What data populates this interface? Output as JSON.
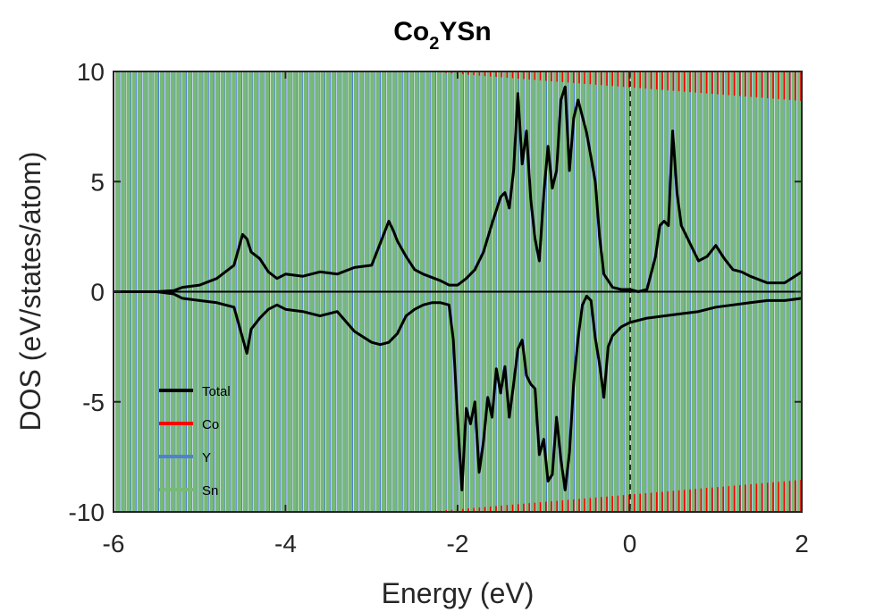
{
  "chart_data": {
    "type": "line",
    "title_main": "Co",
    "title_sub": "2",
    "title_rest": "YSn",
    "xlabel": "Energy (eV)",
    "ylabel": "DOS (eV/states/atom)",
    "xlim": [
      -6,
      2
    ],
    "ylim": [
      -10,
      10
    ],
    "xticks": [
      -6,
      -4,
      -2,
      0,
      2
    ],
    "xtick_labels": [
      "-6",
      "-4",
      "-2",
      "0",
      "2"
    ],
    "yticks": [
      -10,
      -5,
      0,
      5,
      10
    ],
    "ytick_labels": [
      "-10",
      "-5",
      "0",
      "5",
      "10"
    ],
    "fermi_level": 0,
    "legend_position": "lower-left",
    "legend": [
      {
        "name": "Total",
        "color": "#000000"
      },
      {
        "name": "Co",
        "color": "#ff0000"
      },
      {
        "name": "Y",
        "color": "#4f81d0"
      },
      {
        "name": "Sn",
        "color": "#77b977"
      }
    ],
    "series": [
      {
        "name": "Total",
        "color": "#000000",
        "spin_up": {
          "x": [
            -6.0,
            -5.5,
            -5.3,
            -5.2,
            -5.0,
            -4.8,
            -4.6,
            -4.5,
            -4.45,
            -4.4,
            -4.3,
            -4.2,
            -4.1,
            -4.0,
            -3.8,
            -3.6,
            -3.4,
            -3.2,
            -3.0,
            -2.9,
            -2.8,
            -2.75,
            -2.7,
            -2.6,
            -2.5,
            -2.4,
            -2.2,
            -2.1,
            -2.0,
            -1.9,
            -1.8,
            -1.7,
            -1.6,
            -1.5,
            -1.45,
            -1.4,
            -1.35,
            -1.3,
            -1.25,
            -1.2,
            -1.15,
            -1.1,
            -1.05,
            -1.0,
            -0.95,
            -0.9,
            -0.85,
            -0.8,
            -0.75,
            -0.7,
            -0.65,
            -0.6,
            -0.5,
            -0.4,
            -0.35,
            -0.3,
            -0.2,
            -0.1,
            0.0,
            0.1,
            0.2,
            0.3,
            0.35,
            0.4,
            0.45,
            0.5,
            0.55,
            0.6,
            0.7,
            0.8,
            0.9,
            1.0,
            1.1,
            1.2,
            1.3,
            1.4,
            1.6,
            1.8,
            2.0
          ],
          "y": [
            0.0,
            0.0,
            0.05,
            0.2,
            0.3,
            0.6,
            1.2,
            2.6,
            2.4,
            1.8,
            1.5,
            0.9,
            0.6,
            0.8,
            0.7,
            0.9,
            0.8,
            1.1,
            1.2,
            2.2,
            3.2,
            2.8,
            2.3,
            1.6,
            1.0,
            0.8,
            0.5,
            0.3,
            0.3,
            0.6,
            1.0,
            1.8,
            3.1,
            4.3,
            4.5,
            3.8,
            5.5,
            9.0,
            5.8,
            7.3,
            4.2,
            2.4,
            1.4,
            4.4,
            6.6,
            4.7,
            5.5,
            8.7,
            9.3,
            5.5,
            7.9,
            8.7,
            7.2,
            5.0,
            2.5,
            0.8,
            0.2,
            0.1,
            0.1,
            0.0,
            0.1,
            1.6,
            3.0,
            3.2,
            3.0,
            7.3,
            4.5,
            3.0,
            2.2,
            1.4,
            1.6,
            2.1,
            1.5,
            1.0,
            0.9,
            0.7,
            0.4,
            0.4,
            0.9
          ]
        },
        "spin_down": {
          "x": [
            -6.0,
            -5.5,
            -5.3,
            -5.2,
            -5.0,
            -4.8,
            -4.6,
            -4.5,
            -4.45,
            -4.4,
            -4.3,
            -4.2,
            -4.1,
            -4.0,
            -3.8,
            -3.6,
            -3.4,
            -3.2,
            -3.0,
            -2.9,
            -2.8,
            -2.7,
            -2.6,
            -2.5,
            -2.4,
            -2.3,
            -2.2,
            -2.1,
            -2.05,
            -2.0,
            -1.95,
            -1.9,
            -1.85,
            -1.8,
            -1.75,
            -1.7,
            -1.65,
            -1.6,
            -1.55,
            -1.5,
            -1.45,
            -1.4,
            -1.35,
            -1.3,
            -1.25,
            -1.2,
            -1.15,
            -1.1,
            -1.05,
            -1.0,
            -0.95,
            -0.9,
            -0.85,
            -0.8,
            -0.75,
            -0.7,
            -0.65,
            -0.6,
            -0.55,
            -0.5,
            -0.45,
            -0.4,
            -0.35,
            -0.3,
            -0.25,
            -0.2,
            -0.1,
            0.0,
            0.2,
            0.4,
            0.6,
            0.8,
            1.0,
            1.2,
            1.4,
            1.6,
            1.8,
            2.0
          ],
          "y": [
            0.0,
            0.0,
            -0.1,
            -0.3,
            -0.4,
            -0.5,
            -0.7,
            -2.1,
            -2.8,
            -1.7,
            -1.2,
            -0.8,
            -0.6,
            -0.8,
            -0.9,
            -1.1,
            -0.9,
            -1.8,
            -2.3,
            -2.4,
            -2.3,
            -1.9,
            -1.1,
            -0.8,
            -0.6,
            -0.5,
            -0.5,
            -0.6,
            -2.2,
            -5.8,
            -9.0,
            -5.3,
            -6.0,
            -5.0,
            -8.2,
            -6.8,
            -4.8,
            -5.7,
            -3.5,
            -4.6,
            -3.4,
            -5.7,
            -4.2,
            -2.6,
            -2.2,
            -3.8,
            -4.2,
            -4.4,
            -7.4,
            -6.7,
            -8.6,
            -8.3,
            -5.7,
            -7.6,
            -9.0,
            -7.3,
            -4.1,
            -2.1,
            -0.6,
            -0.2,
            -0.4,
            -2.1,
            -3.3,
            -4.8,
            -2.5,
            -2.0,
            -1.6,
            -1.4,
            -1.2,
            -1.1,
            -1.0,
            -0.9,
            -0.7,
            -0.6,
            -0.5,
            -0.4,
            -0.4,
            -0.3
          ]
        }
      }
    ]
  }
}
